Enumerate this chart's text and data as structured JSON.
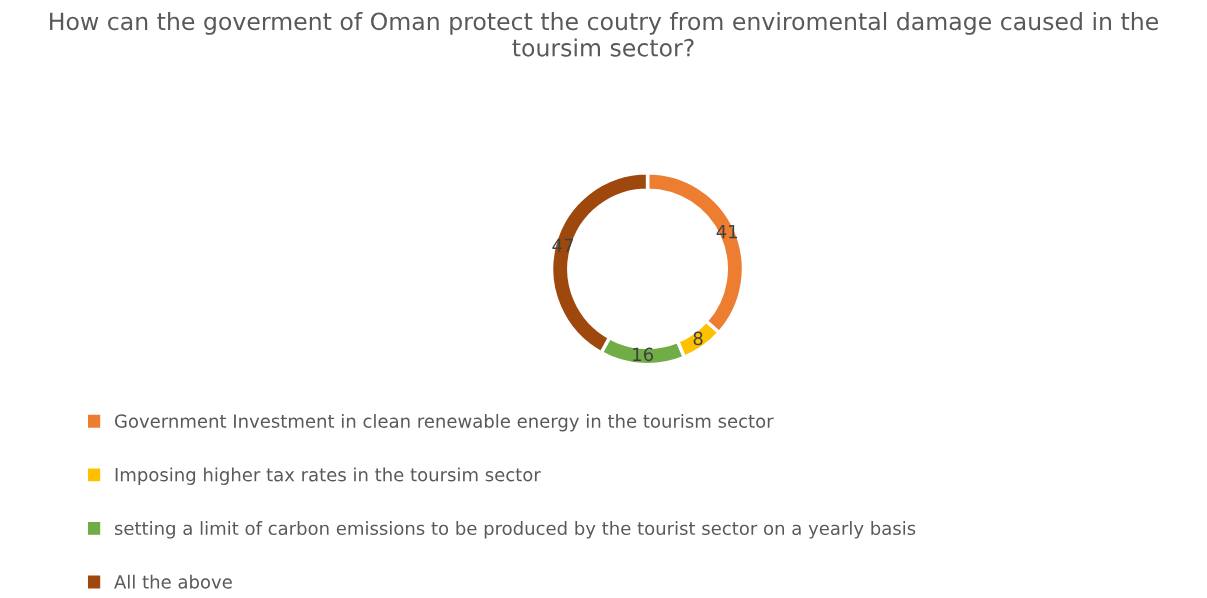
{
  "chart_data": {
    "type": "donut",
    "title": "How can the goverment of Oman protect the coutry from enviromental damage caused in the toursim sector?",
    "categories": [
      "Government Investment in clean renewable energy in the tourism sector",
      "Imposing higher tax rates in the toursim sector",
      "setting a limit of carbon emissions to be produced by the tourist sector on a yearly basis",
      "All the above"
    ],
    "values": [
      41,
      8,
      16,
      47
    ],
    "colors": [
      "#ed7d31",
      "#ffc000",
      "#70ad47",
      "#9e480e"
    ],
    "data_labels": true,
    "legend": "bottom"
  }
}
